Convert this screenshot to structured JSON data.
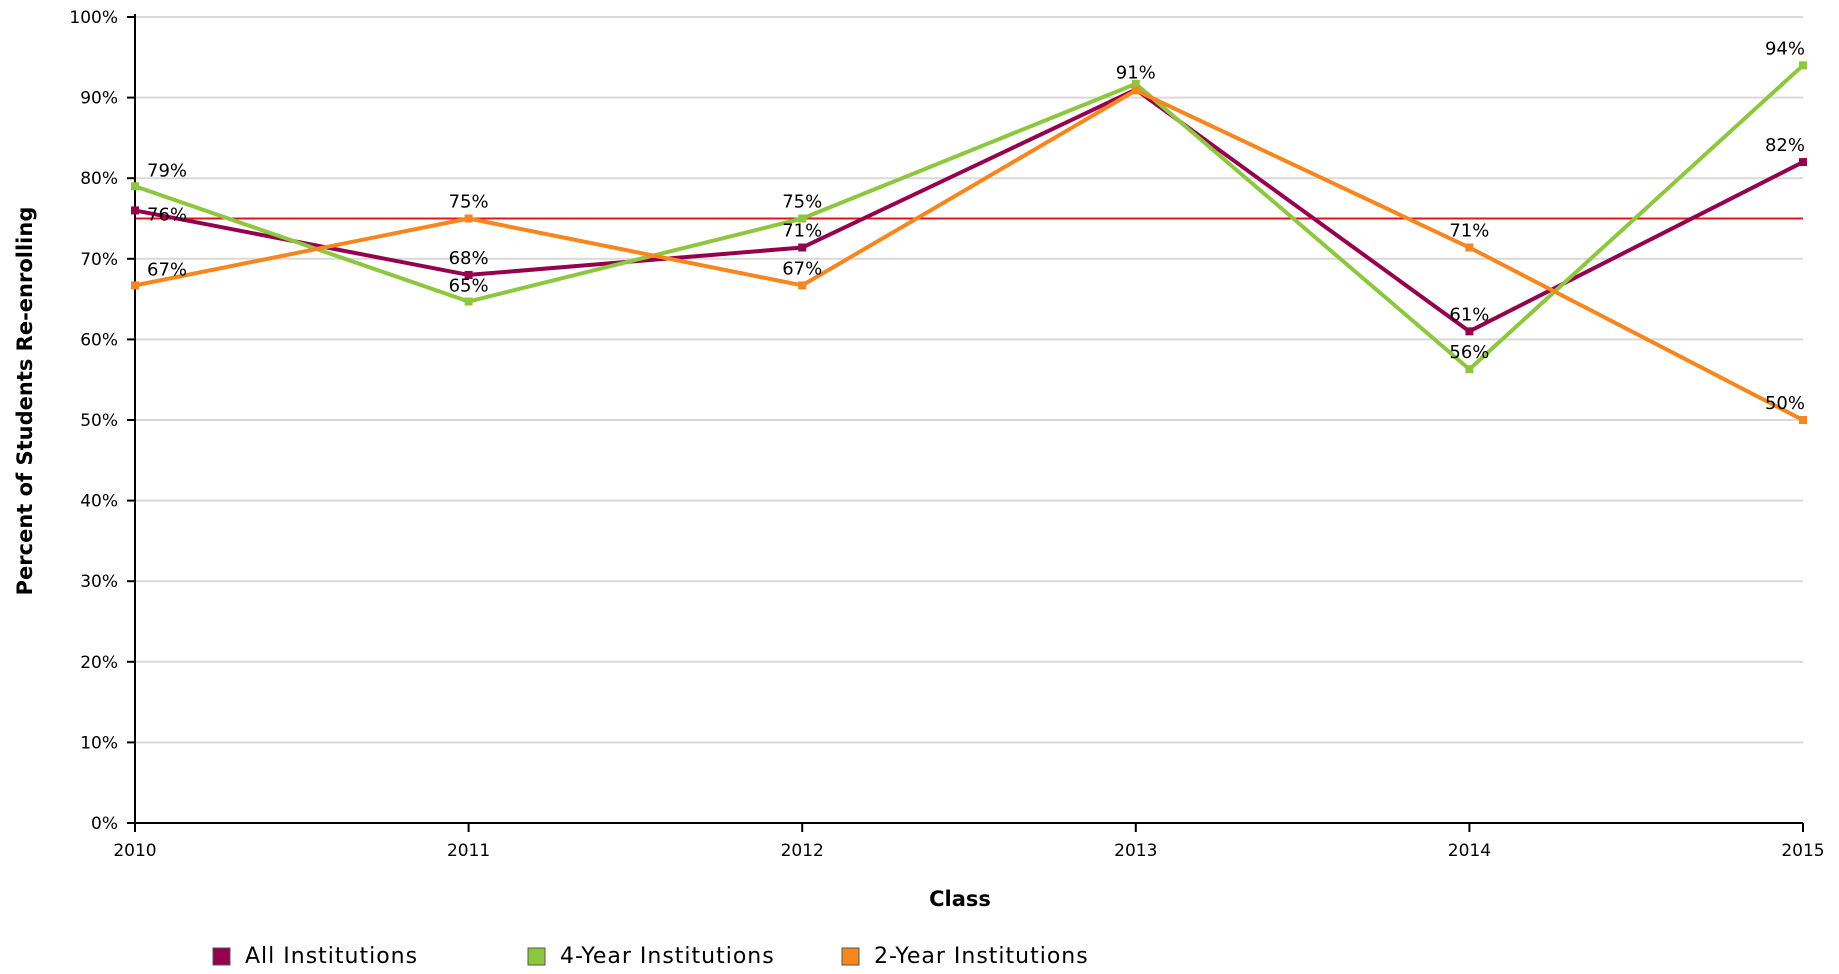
{
  "chart_data": {
    "type": "line",
    "categories": [
      "2010",
      "2011",
      "2012",
      "2013",
      "2014",
      "2015"
    ],
    "xlabel": "Class",
    "ylabel": "Percent of Students Re-enrolling",
    "ylim": [
      0,
      100
    ],
    "ytick_step": 10,
    "grid": true,
    "legend_position": "bottom-left",
    "reference_line": {
      "value": 75,
      "color": "#e8141c"
    },
    "series": [
      {
        "name": "All Institutions",
        "color": "#94004e",
        "values": [
          76,
          68,
          71.4,
          91,
          61,
          82
        ],
        "labels": [
          "76%",
          "68%",
          "71%",
          "91%",
          "61%",
          "82%"
        ]
      },
      {
        "name": "4-Year Institutions",
        "color": "#8dc63f",
        "values": [
          79,
          64.7,
          75,
          91.7,
          56.3,
          94
        ],
        "labels": [
          "79%",
          "65%",
          "75%",
          "",
          "56%",
          "94%"
        ]
      },
      {
        "name": "2-Year Institutions",
        "color": "#f7861e",
        "values": [
          66.7,
          75,
          66.7,
          90.9,
          71.4,
          50
        ],
        "labels": [
          "67%",
          "75%",
          "67%",
          "",
          "71%",
          "50%"
        ]
      }
    ]
  }
}
